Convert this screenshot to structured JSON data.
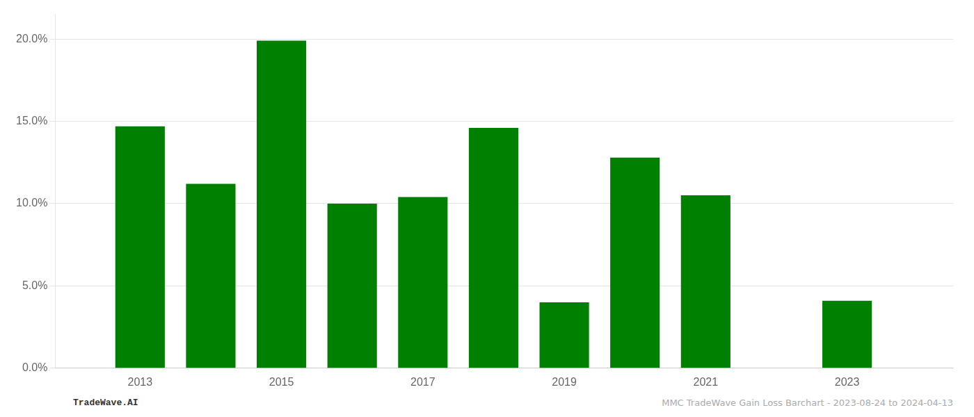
{
  "chart_data": {
    "type": "bar",
    "x": [
      2013,
      2014,
      2015,
      2016,
      2017,
      2018,
      2019,
      2020,
      2021,
      2022,
      2023
    ],
    "values": [
      0.147,
      0.112,
      0.199,
      0.1,
      0.104,
      0.146,
      0.04,
      0.128,
      0.105,
      0.0,
      0.041
    ],
    "color": "#008000",
    "xlim": [
      2011.8,
      2024.5
    ],
    "xticks": [
      2013,
      2015,
      2017,
      2019,
      2021,
      2023
    ],
    "ylim": [
      0.0,
      0.215
    ],
    "yticks": [
      {
        "value": 0.0,
        "label": "0.0%"
      },
      {
        "value": 0.05,
        "label": "5.0%"
      },
      {
        "value": 0.1,
        "label": "10.0%"
      },
      {
        "value": 0.15,
        "label": "15.0%"
      },
      {
        "value": 0.2,
        "label": "20.0%"
      }
    ],
    "grid": true,
    "annotations": [
      "TradeWave.AI",
      "MMC TradeWave Gain Loss Barchart - 2023-08-24 to 2024-04-13"
    ]
  }
}
